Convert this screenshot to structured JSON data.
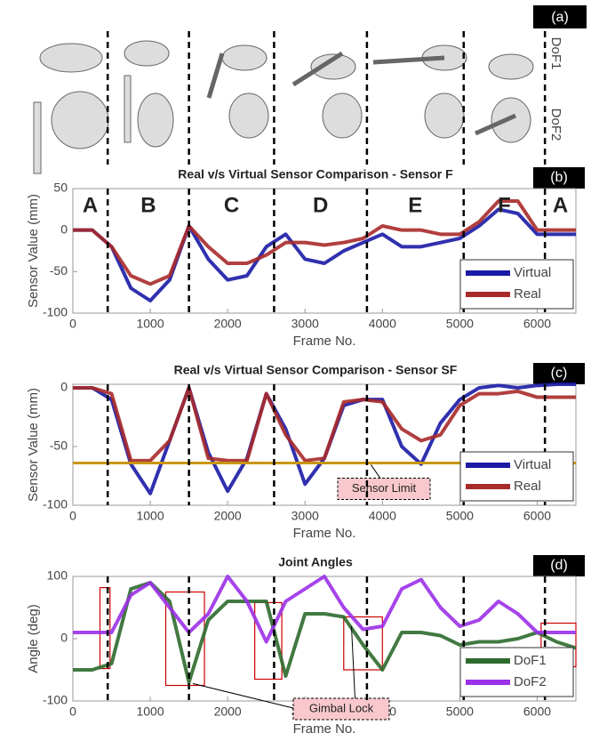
{
  "figure": {
    "panel_label": "(a)",
    "dof_labels": [
      "DoF1",
      "DoF2"
    ]
  },
  "chart_data": [
    {
      "type": "line",
      "panel_label": "(b)",
      "title": "Real v/s Virtual Sensor Comparison - Sensor F",
      "xlabel": "Frame No.",
      "ylabel": "Sensor Value (mm)",
      "x": [
        0,
        250,
        500,
        750,
        1000,
        1250,
        1500,
        1750,
        2000,
        2250,
        2500,
        2750,
        3000,
        3250,
        3500,
        3750,
        4000,
        4250,
        4500,
        4750,
        5000,
        5250,
        5500,
        5750,
        6000,
        6250,
        6500
      ],
      "xlim": [
        0,
        6500
      ],
      "xticks": [
        0,
        1000,
        2000,
        3000,
        4000,
        5000,
        6000
      ],
      "ylim": [
        -100,
        50
      ],
      "yticks": [
        -100,
        -50,
        0,
        50
      ],
      "legend": "lower right",
      "series": [
        {
          "name": "Virtual",
          "color": "#1a1aa6",
          "values": [
            0,
            0,
            -20,
            -70,
            -85,
            -60,
            5,
            -35,
            -60,
            -55,
            -20,
            -5,
            -35,
            -40,
            -25,
            -15,
            -5,
            -20,
            -20,
            -15,
            -10,
            5,
            25,
            20,
            -5,
            -5,
            -5
          ]
        },
        {
          "name": "Real",
          "color": "#a82a2a",
          "values": [
            0,
            0,
            -20,
            -55,
            -65,
            -55,
            5,
            -20,
            -40,
            -40,
            -30,
            -15,
            -15,
            -18,
            -15,
            -10,
            5,
            0,
            0,
            -5,
            -5,
            10,
            35,
            35,
            0,
            0,
            0
          ]
        }
      ],
      "phase_boundaries": [
        450,
        1500,
        2600,
        3800,
        5050,
        6100
      ],
      "phase_labels": [
        "A",
        "B",
        "C",
        "D",
        "E",
        "F",
        "A"
      ]
    },
    {
      "type": "line",
      "panel_label": "(c)",
      "title": "Real v/s Virtual Sensor Comparison - Sensor SF",
      "xlabel": "Frame No.",
      "ylabel": "Sensor Value (mm)",
      "x": [
        0,
        250,
        500,
        750,
        1000,
        1250,
        1500,
        1750,
        2000,
        2250,
        2500,
        2750,
        3000,
        3250,
        3500,
        3750,
        4000,
        4250,
        4500,
        4750,
        5000,
        5250,
        5500,
        5750,
        6000,
        6250,
        6500
      ],
      "xlim": [
        0,
        6500
      ],
      "xticks": [
        0,
        1000,
        2000,
        3000,
        4000,
        5000,
        6000
      ],
      "ylim": [
        -100,
        3
      ],
      "yticks": [
        -100,
        -50,
        0
      ],
      "legend": "lower right",
      "series": [
        {
          "name": "Virtual",
          "color": "#1a1aa6",
          "values": [
            0,
            0,
            -10,
            -65,
            -90,
            -45,
            0,
            -55,
            -88,
            -60,
            -5,
            -35,
            -82,
            -60,
            -15,
            -10,
            -10,
            -50,
            -65,
            -30,
            -10,
            0,
            2,
            0,
            2,
            3,
            3
          ]
        },
        {
          "name": "Real",
          "color": "#a82a2a",
          "values": [
            0,
            0,
            -5,
            -62,
            -62,
            -45,
            0,
            -60,
            -62,
            -62,
            -5,
            -40,
            -62,
            -60,
            -12,
            -10,
            -12,
            -35,
            -45,
            -40,
            -15,
            -5,
            -5,
            -3,
            -8,
            -8,
            -8
          ]
        }
      ],
      "phase_boundaries": [
        450,
        1500,
        2600,
        3800,
        5050,
        6100
      ],
      "reference_line": {
        "value": -64,
        "color": "#c8960c",
        "label": "Sensor Limit"
      }
    },
    {
      "type": "line",
      "panel_label": "(d)",
      "title": "Joint Angles",
      "xlabel": "Frame No.",
      "ylabel": "Angle (deg)",
      "x": [
        0,
        250,
        500,
        750,
        1000,
        1250,
        1500,
        1750,
        2000,
        2250,
        2500,
        2750,
        3000,
        3250,
        3500,
        3750,
        4000,
        4250,
        4500,
        4750,
        5000,
        5250,
        5500,
        5750,
        6000,
        6250,
        6500
      ],
      "xlim": [
        0,
        6500
      ],
      "xticks": [
        0,
        1000,
        2000,
        3000,
        4000,
        5000,
        6000
      ],
      "ylim": [
        -100,
        100
      ],
      "yticks": [
        -100,
        0,
        100
      ],
      "legend": "lower right",
      "series": [
        {
          "name": "DoF1",
          "color": "#2d6a2d",
          "values": [
            -50,
            -50,
            -40,
            80,
            90,
            60,
            -70,
            30,
            60,
            60,
            60,
            -60,
            40,
            40,
            35,
            -10,
            -50,
            10,
            10,
            5,
            -10,
            -5,
            -5,
            0,
            10,
            -5,
            -15
          ]
        },
        {
          "name": "DoF2",
          "color": "#9b30e8",
          "values": [
            10,
            10,
            10,
            70,
            90,
            50,
            10,
            40,
            100,
            60,
            -5,
            60,
            80,
            100,
            50,
            15,
            20,
            80,
            95,
            50,
            20,
            30,
            60,
            40,
            10,
            10,
            10
          ]
        }
      ],
      "phase_boundaries": [
        450,
        1500,
        2600,
        3800,
        5050,
        6100
      ],
      "annotation": "Gimbal Lock",
      "highlights": [
        {
          "x": [
            350,
            480
          ],
          "y": [
            -48,
            82
          ]
        },
        {
          "x": [
            1200,
            1700
          ],
          "y": [
            -75,
            75
          ]
        },
        {
          "x": [
            2350,
            2700
          ],
          "y": [
            -65,
            58
          ]
        },
        {
          "x": [
            3500,
            4000
          ],
          "y": [
            -50,
            35
          ]
        },
        {
          "x": [
            6050,
            6500
          ],
          "y": [
            -45,
            25
          ]
        }
      ]
    }
  ]
}
